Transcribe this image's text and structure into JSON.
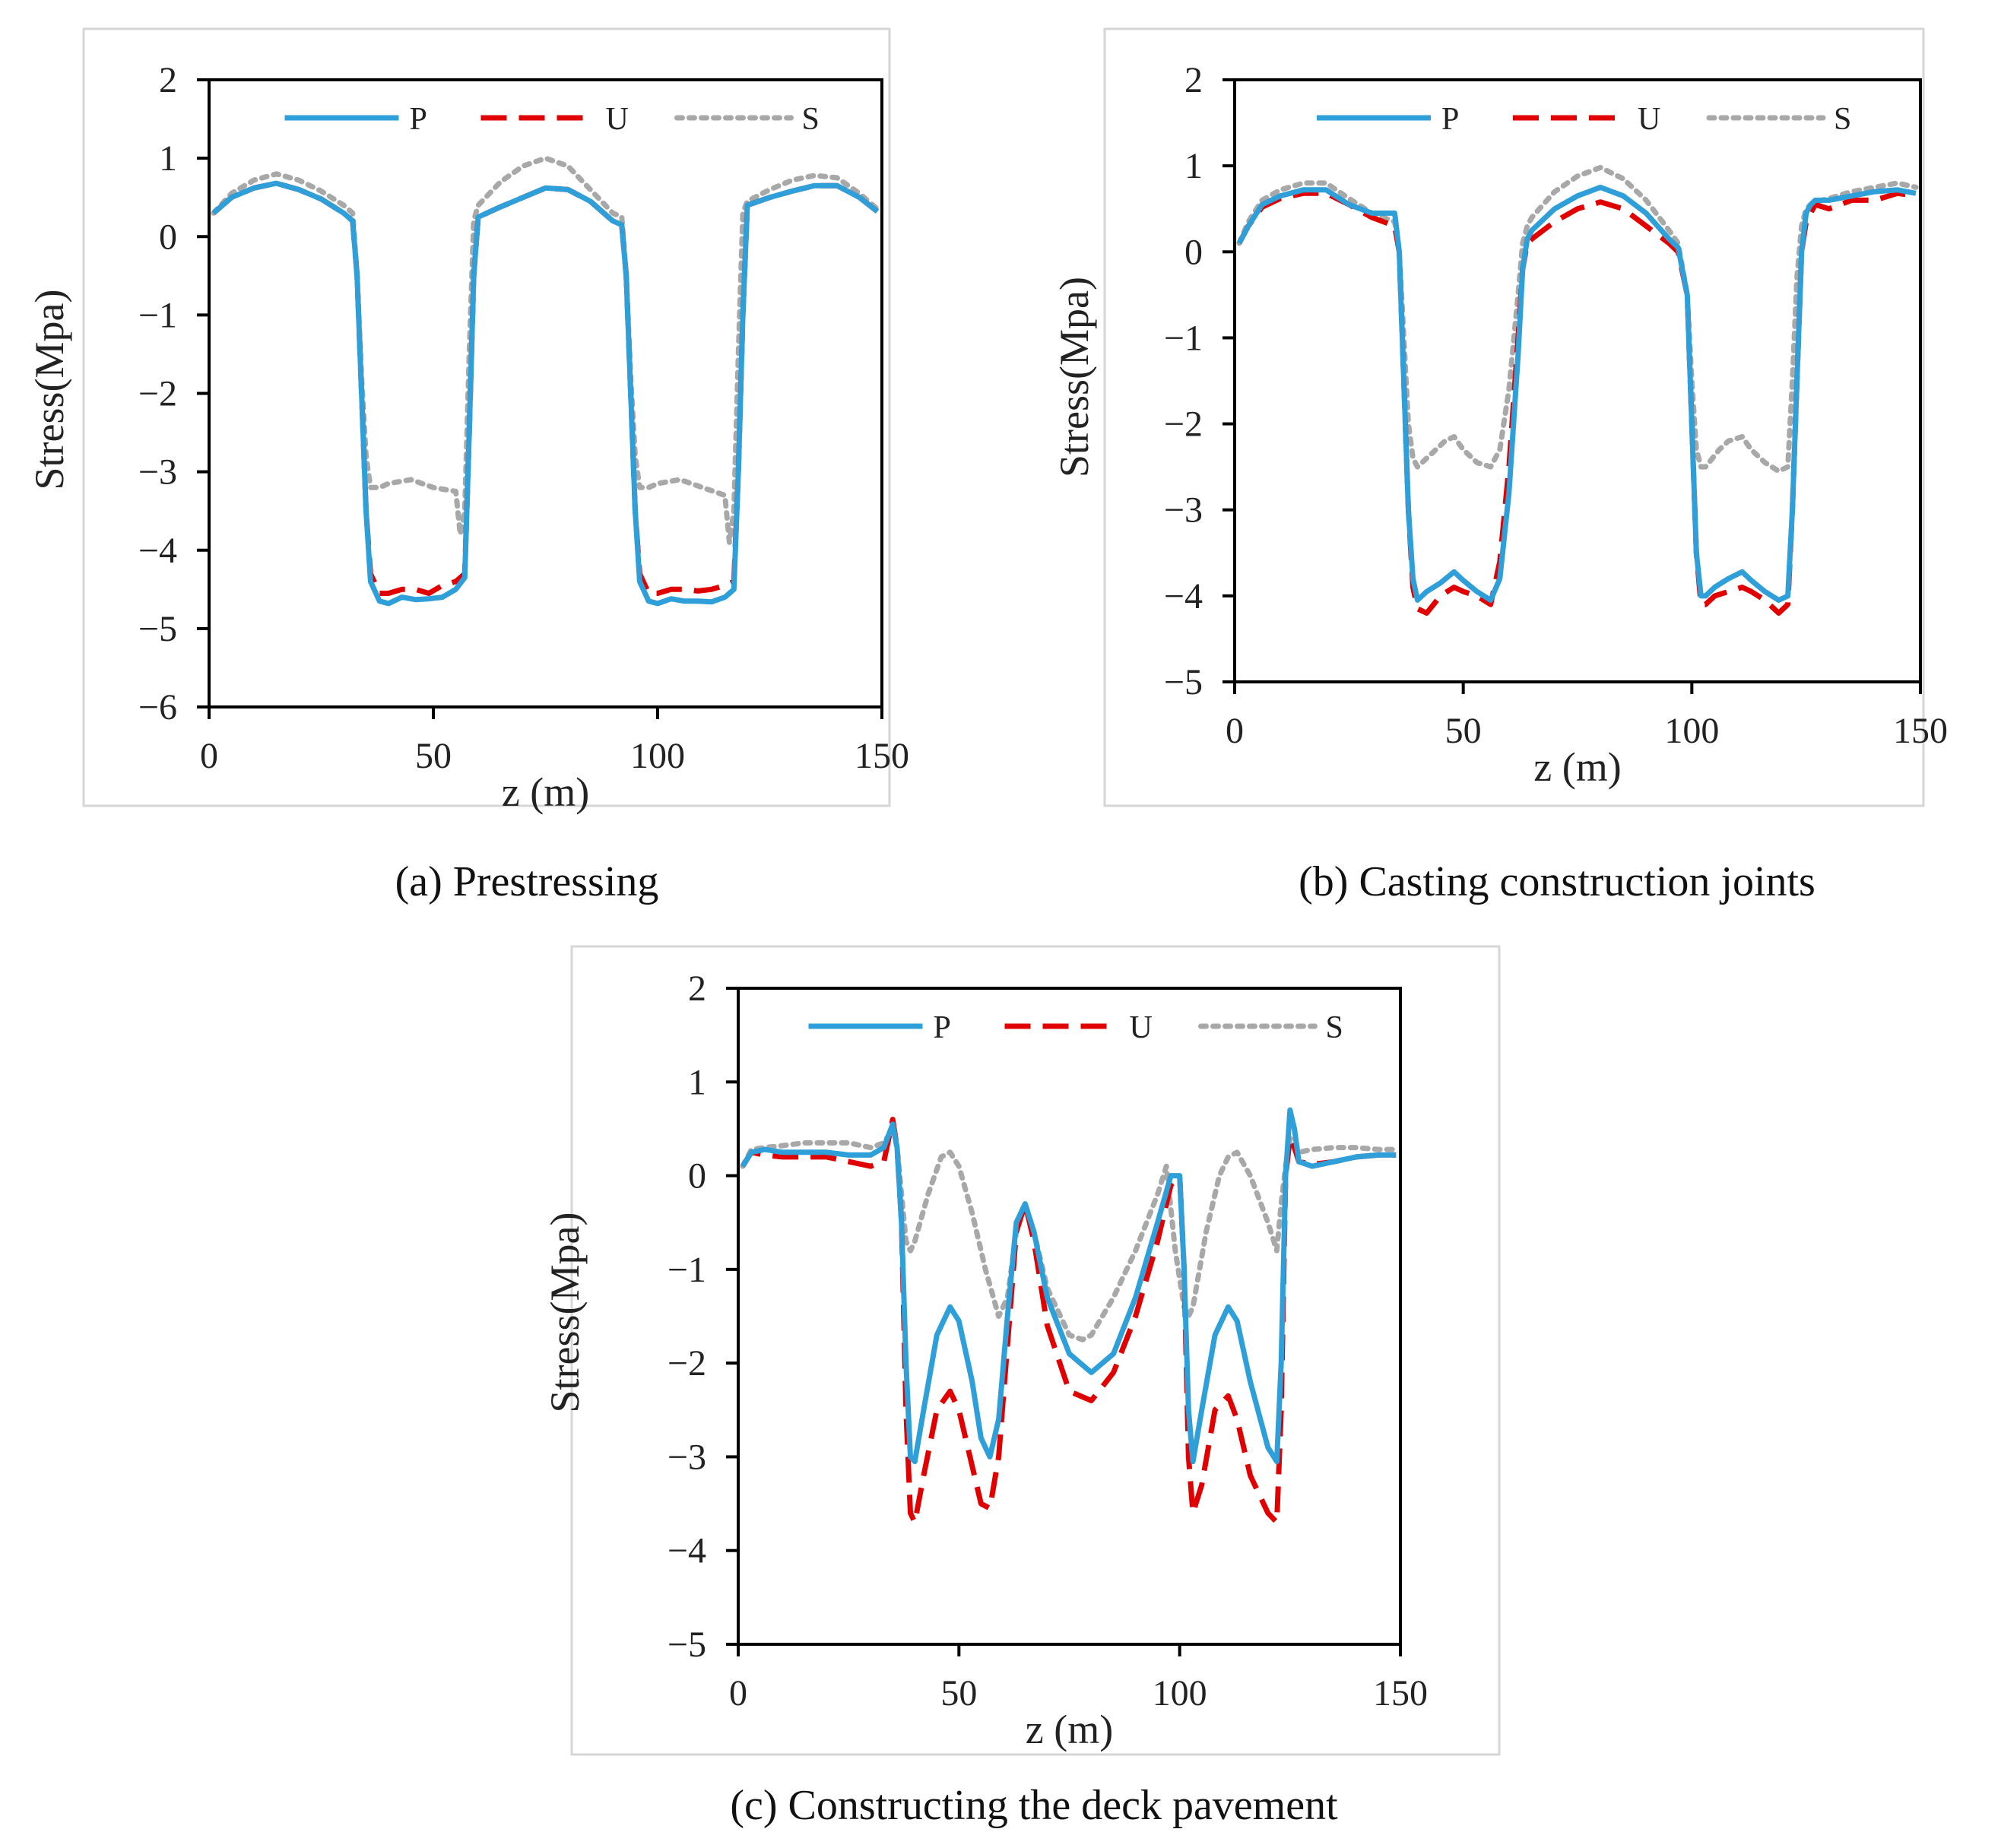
{
  "chart_data": [
    {
      "type": "line",
      "caption": "(a) Prestressing",
      "xlabel": "z (m)",
      "ylabel": "Stress(Mpa)",
      "xlim": [
        0,
        150
      ],
      "ylim": [
        -6,
        2
      ],
      "xticks": [
        0,
        50,
        100,
        150
      ],
      "yticks": [
        2,
        1,
        0,
        -1,
        -2,
        -3,
        -4,
        -5,
        -6
      ],
      "ytick_labels": [
        "2",
        "1",
        "0",
        "−1",
        "−2",
        "−3",
        "−4",
        "−5",
        "−6"
      ],
      "legend": [
        "P",
        "U",
        "S"
      ],
      "series": [
        {
          "name": "P",
          "color": "#2E9FD8",
          "style": "solid",
          "x": [
            1,
            5,
            10,
            15,
            20,
            25,
            30,
            32,
            33,
            34,
            35,
            36,
            38,
            40,
            43,
            46,
            49,
            52,
            55,
            57,
            58,
            59,
            60,
            65,
            70,
            75,
            80,
            85,
            90,
            92,
            93,
            94,
            95,
            96,
            98,
            100,
            103,
            106,
            109,
            112,
            115,
            117,
            118,
            119,
            120,
            125,
            130,
            135,
            140,
            145,
            149
          ],
          "y": [
            0.3,
            0.5,
            0.62,
            0.68,
            0.6,
            0.48,
            0.3,
            0.2,
            -0.5,
            -2,
            -3.5,
            -4.4,
            -4.65,
            -4.68,
            -4.6,
            -4.63,
            -4.62,
            -4.6,
            -4.5,
            -4.35,
            -2.5,
            -0.5,
            0.25,
            0.38,
            0.5,
            0.62,
            0.6,
            0.45,
            0.2,
            0.15,
            -0.5,
            -2,
            -3.5,
            -4.4,
            -4.65,
            -4.68,
            -4.62,
            -4.65,
            -4.65,
            -4.66,
            -4.6,
            -4.5,
            -3,
            -1,
            0.4,
            0.5,
            0.58,
            0.65,
            0.65,
            0.5,
            0.32
          ]
        },
        {
          "name": "U",
          "color": "#E00000",
          "style": "dashed",
          "x": [
            1,
            5,
            10,
            15,
            20,
            25,
            30,
            32,
            33,
            34,
            35,
            36,
            38,
            40,
            43,
            46,
            49,
            52,
            55,
            57,
            58,
            59,
            60,
            65,
            70,
            75,
            80,
            85,
            90,
            92,
            93,
            94,
            95,
            96,
            98,
            100,
            103,
            106,
            109,
            112,
            115,
            117,
            118,
            119,
            120,
            125,
            130,
            135,
            140,
            145,
            149
          ],
          "y": [
            0.3,
            0.5,
            0.62,
            0.68,
            0.6,
            0.48,
            0.3,
            0.2,
            -0.5,
            -2,
            -3.5,
            -4.3,
            -4.55,
            -4.55,
            -4.5,
            -4.5,
            -4.55,
            -4.45,
            -4.4,
            -4.3,
            -2.5,
            -0.5,
            0.25,
            0.38,
            0.5,
            0.62,
            0.6,
            0.45,
            0.2,
            0.15,
            -0.5,
            -2,
            -3.5,
            -4.3,
            -4.55,
            -4.55,
            -4.5,
            -4.5,
            -4.52,
            -4.5,
            -4.45,
            -4.4,
            -3,
            -1,
            0.4,
            0.5,
            0.58,
            0.65,
            0.65,
            0.5,
            0.32
          ]
        },
        {
          "name": "S",
          "color": "#A8A8A8",
          "style": "dotted",
          "x": [
            1,
            5,
            10,
            15,
            20,
            25,
            30,
            32,
            33,
            34,
            35,
            36,
            38,
            40,
            45,
            50,
            55,
            56,
            57,
            58,
            59,
            60,
            65,
            70,
            75,
            80,
            85,
            90,
            92,
            93,
            94,
            95,
            96,
            98,
            100,
            105,
            110,
            115,
            116,
            117,
            118,
            119,
            120,
            125,
            130,
            135,
            140,
            145,
            149
          ],
          "y": [
            0.3,
            0.55,
            0.72,
            0.8,
            0.72,
            0.58,
            0.4,
            0.3,
            -0.5,
            -1.8,
            -2.8,
            -3.2,
            -3.2,
            -3.15,
            -3.1,
            -3.2,
            -3.25,
            -3.8,
            -3.5,
            -1.5,
            0.2,
            0.4,
            0.7,
            0.9,
            1.0,
            0.9,
            0.6,
            0.3,
            0.25,
            -0.5,
            -1.8,
            -2.8,
            -3.2,
            -3.2,
            -3.15,
            -3.1,
            -3.2,
            -3.3,
            -3.9,
            -3.5,
            -1.5,
            0.3,
            0.45,
            0.6,
            0.72,
            0.78,
            0.75,
            0.55,
            0.35
          ]
        }
      ]
    },
    {
      "type": "line",
      "caption": "(b) Casting construction joints",
      "xlabel": "z (m)",
      "ylabel": "Stress(Mpa)",
      "xlim": [
        0,
        150
      ],
      "ylim": [
        -5,
        2
      ],
      "xticks": [
        0,
        50,
        100,
        150
      ],
      "yticks": [
        2,
        1,
        0,
        -1,
        -2,
        -3,
        -4,
        -5
      ],
      "ytick_labels": [
        "2",
        "1",
        "0",
        "−1",
        "−2",
        "−3",
        "−4",
        "−5"
      ],
      "legend": [
        "P",
        "U",
        "S"
      ],
      "series": [
        {
          "name": "P",
          "color": "#2E9FD8",
          "style": "solid",
          "x": [
            1,
            3,
            6,
            10,
            15,
            20,
            25,
            30,
            35,
            36,
            37,
            38,
            39,
            40,
            42,
            45,
            48,
            50,
            53,
            56,
            58,
            60,
            62,
            63,
            64,
            65,
            70,
            75,
            80,
            85,
            90,
            95,
            97,
            99,
            100,
            101,
            102,
            103,
            105,
            108,
            111,
            113,
            116,
            119,
            121,
            122,
            123,
            124,
            125,
            126,
            127,
            130,
            135,
            140,
            145,
            149
          ],
          "y": [
            0.1,
            0.3,
            0.55,
            0.65,
            0.72,
            0.72,
            0.55,
            0.45,
            0.45,
            0,
            -1.5,
            -3,
            -3.8,
            -4.05,
            -3.95,
            -3.85,
            -3.72,
            -3.82,
            -3.95,
            -4.05,
            -3.8,
            -2.8,
            -1.2,
            -0.2,
            0.15,
            0.25,
            0.5,
            0.65,
            0.75,
            0.65,
            0.45,
            0.15,
            0.05,
            -0.5,
            -2,
            -3.5,
            -4,
            -4,
            -3.9,
            -3.8,
            -3.72,
            -3.82,
            -3.95,
            -4.05,
            -4,
            -3,
            -1.5,
            0,
            0.45,
            0.55,
            0.6,
            0.6,
            0.65,
            0.7,
            0.72,
            0.68
          ]
        },
        {
          "name": "U",
          "color": "#E00000",
          "style": "dashed",
          "x": [
            1,
            3,
            6,
            10,
            15,
            20,
            25,
            30,
            35,
            36,
            37,
            38,
            39,
            40,
            42,
            45,
            48,
            50,
            53,
            56,
            58,
            60,
            62,
            63,
            64,
            65,
            70,
            75,
            80,
            85,
            90,
            95,
            97,
            99,
            100,
            101,
            102,
            103,
            105,
            108,
            111,
            113,
            116,
            119,
            121,
            122,
            123,
            124,
            125,
            126,
            127,
            130,
            135,
            140,
            145,
            149
          ],
          "y": [
            0.1,
            0.3,
            0.52,
            0.62,
            0.68,
            0.68,
            0.55,
            0.4,
            0.3,
            0,
            -1.5,
            -3,
            -3.9,
            -4.15,
            -4.2,
            -4.0,
            -3.9,
            -3.95,
            -4.0,
            -4.1,
            -3.6,
            -2.5,
            -1,
            -0.2,
            0.1,
            0.15,
            0.35,
            0.5,
            0.58,
            0.5,
            0.3,
            0.1,
            0,
            -0.5,
            -2,
            -3.5,
            -4.1,
            -4.1,
            -4.0,
            -3.95,
            -3.9,
            -3.95,
            -4.05,
            -4.2,
            -4.1,
            -3,
            -1.5,
            0,
            0.35,
            0.45,
            0.55,
            0.5,
            0.6,
            0.6,
            0.68,
            0.65
          ]
        },
        {
          "name": "S",
          "color": "#A8A8A8",
          "style": "dotted",
          "x": [
            1,
            3,
            6,
            10,
            15,
            20,
            25,
            30,
            35,
            36,
            37,
            38,
            39,
            40,
            43,
            46,
            48,
            50,
            53,
            56,
            58,
            60,
            62,
            63,
            64,
            65,
            70,
            75,
            80,
            85,
            90,
            95,
            97,
            99,
            100,
            101,
            102,
            103,
            106,
            108,
            111,
            113,
            116,
            119,
            121,
            122,
            123,
            124,
            125,
            126,
            127,
            130,
            135,
            140,
            145,
            149
          ],
          "y": [
            0.1,
            0.35,
            0.6,
            0.72,
            0.8,
            0.8,
            0.62,
            0.45,
            0.35,
            0,
            -1,
            -2,
            -2.4,
            -2.5,
            -2.35,
            -2.2,
            -2.15,
            -2.3,
            -2.45,
            -2.5,
            -2.3,
            -1.6,
            -0.5,
            0.1,
            0.3,
            0.4,
            0.7,
            0.88,
            0.98,
            0.85,
            0.6,
            0.25,
            0.1,
            -0.5,
            -1.5,
            -2.3,
            -2.5,
            -2.5,
            -2.3,
            -2.2,
            -2.15,
            -2.3,
            -2.45,
            -2.55,
            -2.5,
            -1.5,
            -0.3,
            0.3,
            0.5,
            0.55,
            0.58,
            0.62,
            0.7,
            0.75,
            0.8,
            0.75
          ]
        }
      ]
    },
    {
      "type": "line",
      "caption": "(c) Constructing the deck pavement",
      "xlabel": "z (m)",
      "ylabel": "Stress(Mpa)",
      "xlim": [
        0,
        150
      ],
      "ylim": [
        -5,
        2
      ],
      "xticks": [
        0,
        50,
        100,
        150
      ],
      "yticks": [
        2,
        1,
        0,
        -1,
        -2,
        -3,
        -4,
        -5
      ],
      "ytick_labels": [
        "2",
        "1",
        "0",
        "−1",
        "−2",
        "−3",
        "−4",
        "−5"
      ],
      "legend": [
        "P",
        "U",
        "S"
      ],
      "series": [
        {
          "name": "P",
          "color": "#2E9FD8",
          "style": "solid",
          "x": [
            1,
            3,
            6,
            10,
            15,
            20,
            25,
            30,
            33,
            35,
            36,
            37,
            38,
            39,
            40,
            42,
            45,
            48,
            50,
            53,
            55,
            57,
            59,
            61,
            63,
            65,
            67,
            70,
            75,
            80,
            85,
            90,
            95,
            98,
            100,
            101,
            102,
            103,
            105,
            108,
            111,
            113,
            116,
            120,
            122,
            123,
            124,
            125,
            126,
            127,
            130,
            135,
            140,
            145,
            149
          ],
          "y": [
            0.1,
            0.25,
            0.28,
            0.25,
            0.25,
            0.25,
            0.22,
            0.22,
            0.3,
            0.55,
            0.3,
            -0.5,
            -2,
            -3,
            -3.05,
            -2.5,
            -1.7,
            -1.4,
            -1.55,
            -2.2,
            -2.8,
            -3,
            -2.6,
            -1.5,
            -0.5,
            -0.3,
            -0.6,
            -1.3,
            -1.9,
            -2.1,
            -1.9,
            -1.3,
            -0.5,
            0,
            0,
            -1,
            -2.5,
            -3.05,
            -2.5,
            -1.7,
            -1.4,
            -1.55,
            -2.2,
            -2.9,
            -3.05,
            -2,
            0,
            0.7,
            0.5,
            0.15,
            0.1,
            0.15,
            0.2,
            0.22,
            0.22
          ]
        },
        {
          "name": "U",
          "color": "#E00000",
          "style": "dashed",
          "x": [
            1,
            3,
            6,
            10,
            15,
            20,
            25,
            30,
            33,
            35,
            36,
            37,
            38,
            39,
            40,
            42,
            45,
            48,
            50,
            53,
            55,
            57,
            59,
            61,
            63,
            65,
            67,
            70,
            75,
            80,
            85,
            90,
            95,
            98,
            100,
            101,
            102,
            103,
            105,
            108,
            111,
            113,
            116,
            120,
            122,
            123,
            124,
            125,
            126,
            127,
            130,
            135,
            140,
            145,
            149
          ],
          "y": [
            0.1,
            0.25,
            0.22,
            0.2,
            0.2,
            0.2,
            0.15,
            0.1,
            0.15,
            0.6,
            0.3,
            -0.5,
            -2.5,
            -3.6,
            -3.7,
            -3.2,
            -2.5,
            -2.3,
            -2.5,
            -3.1,
            -3.5,
            -3.55,
            -3,
            -1.8,
            -0.6,
            -0.3,
            -0.7,
            -1.6,
            -2.3,
            -2.4,
            -2.1,
            -1.5,
            -0.7,
            -0.1,
            0,
            -1,
            -3,
            -3.6,
            -3.3,
            -2.5,
            -2.35,
            -2.6,
            -3.2,
            -3.6,
            -3.7,
            -2.5,
            0,
            0.4,
            0.3,
            0.15,
            0.12,
            0.15,
            0.2,
            0.22,
            0.22
          ]
        },
        {
          "name": "S",
          "color": "#A8A8A8",
          "style": "dotted",
          "x": [
            1,
            3,
            6,
            10,
            15,
            20,
            25,
            30,
            33,
            35,
            36,
            37,
            38,
            39,
            40,
            43,
            46,
            48,
            50,
            53,
            56,
            59,
            61,
            63,
            65,
            67,
            70,
            75,
            78,
            80,
            85,
            90,
            95,
            97,
            99,
            101,
            102,
            103,
            106,
            109,
            111,
            113,
            116,
            120,
            122,
            123,
            124,
            125,
            126,
            127,
            130,
            135,
            140,
            145,
            149
          ],
          "y": [
            0.1,
            0.28,
            0.3,
            0.32,
            0.35,
            0.35,
            0.35,
            0.3,
            0.35,
            0.5,
            0.3,
            -0.2,
            -0.7,
            -0.8,
            -0.7,
            -0.2,
            0.2,
            0.25,
            0.1,
            -0.4,
            -1,
            -1.5,
            -1.3,
            -0.6,
            -0.3,
            -0.6,
            -1.2,
            -1.7,
            -1.75,
            -1.7,
            -1.3,
            -0.8,
            -0.2,
            0.1,
            -0.8,
            -1.4,
            -1.5,
            -1.4,
            -0.6,
            0,
            0.2,
            0.25,
            0,
            -0.5,
            -0.8,
            -0.3,
            0.1,
            0.4,
            0.3,
            0.25,
            0.28,
            0.3,
            0.3,
            0.28,
            0.28
          ]
        }
      ]
    }
  ]
}
